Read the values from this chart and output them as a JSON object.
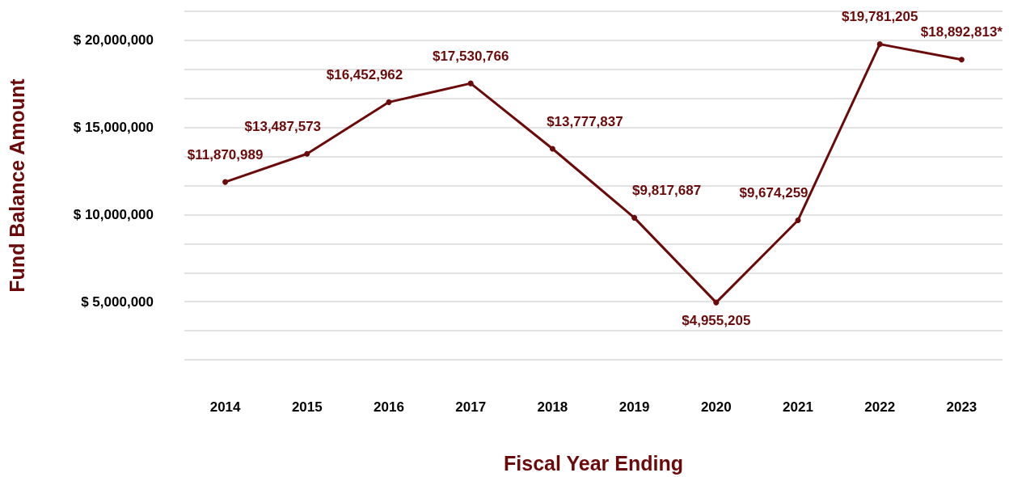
{
  "chart_data": {
    "type": "line",
    "xlabel": "Fiscal Year Ending",
    "ylabel": "Fund Balance Amount",
    "categories": [
      "2014",
      "2015",
      "2016",
      "2017",
      "2018",
      "2019",
      "2020",
      "2021",
      "2022",
      "2023"
    ],
    "series": [
      {
        "color": "#6b0a0a",
        "values": [
          11870989,
          13487573,
          16452962,
          17530766,
          13777837,
          9817687,
          4955205,
          9674259,
          19781205,
          18892813
        ],
        "value_labels": [
          "$11,870,989",
          "$13,487,573",
          "$16,452,962",
          "$17,530,766",
          "$13,777,837",
          "$9,817,687",
          "$4,955,205",
          "$9,674,259",
          "$19,781,205",
          "$18,892,813*"
        ]
      }
    ],
    "ylim": [
      1666667,
      21666667
    ],
    "yticks": [
      {
        "value": 1666667,
        "label": null
      },
      {
        "value": 3333333,
        "label": null
      },
      {
        "value": 5000000,
        "label": "$ 5,000,000"
      },
      {
        "value": 6666667,
        "label": null
      },
      {
        "value": 8333333,
        "label": null
      },
      {
        "value": 10000000,
        "label": "$ 10,000,000"
      },
      {
        "value": 11666667,
        "label": null
      },
      {
        "value": 13333333,
        "label": null
      },
      {
        "value": 15000000,
        "label": "$ 15,000,000"
      },
      {
        "value": 16666667,
        "label": null
      },
      {
        "value": 18333333,
        "label": null
      },
      {
        "value": 20000000,
        "label": "$ 20,000,000"
      },
      {
        "value": 21666667,
        "label": null
      }
    ],
    "grid": "y",
    "marker": "circle",
    "line_style": "solid"
  }
}
